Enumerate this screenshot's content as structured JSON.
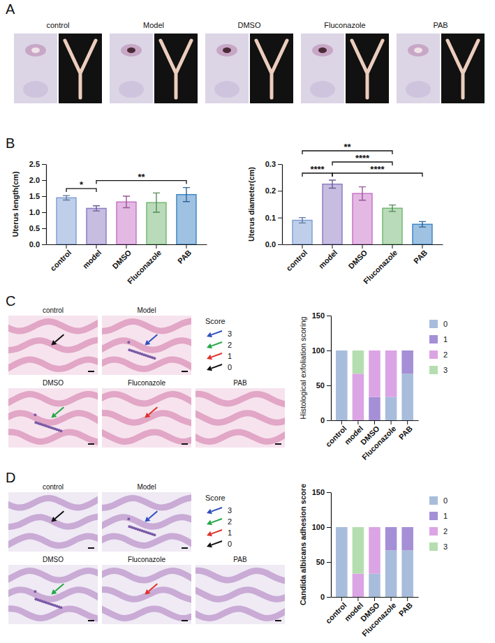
{
  "panels": [
    {
      "letter": "A",
      "labels": [
        "control",
        "Model",
        "DMSO",
        "Fluconazole",
        "PAB"
      ]
    },
    {
      "letter": "B"
    },
    {
      "letter": "C",
      "images": [
        {
          "label": "control",
          "score": "0"
        },
        {
          "label": "Model",
          "score": "3"
        },
        {
          "label": "DMSO",
          "score": "2"
        },
        {
          "label": "Fluconazole",
          "score": "1"
        },
        {
          "label": "PAB"
        }
      ],
      "legend_title": "Score",
      "legend": [
        {
          "label": "3",
          "color": "#2f4fbf"
        },
        {
          "label": "2",
          "color": "#22a845"
        },
        {
          "label": "1",
          "color": "#e0302a"
        },
        {
          "label": "0",
          "color": "#111111"
        }
      ]
    },
    {
      "letter": "D",
      "images": [
        {
          "label": "control",
          "score": "0"
        },
        {
          "label": "Model",
          "score": "3"
        },
        {
          "label": "DMSO",
          "score": "2"
        },
        {
          "label": "Fluconazole",
          "score": "1"
        },
        {
          "label": "PAB"
        }
      ],
      "legend_title": "Score",
      "legend": [
        {
          "label": "3",
          "color": "#2f4fbf"
        },
        {
          "label": "2",
          "color": "#22a845"
        },
        {
          "label": "1",
          "color": "#e0302a"
        },
        {
          "label": "0",
          "color": "#111111"
        }
      ]
    }
  ],
  "chart_data": [
    {
      "type": "bar",
      "y_label": "Uterus length(cm)",
      "categories": [
        "control",
        "model",
        "DMSO",
        "Fluconazole",
        "PAB"
      ],
      "values": [
        1.45,
        1.12,
        1.32,
        1.3,
        1.55
      ],
      "errors": [
        0.07,
        0.08,
        0.18,
        0.3,
        0.22
      ],
      "colors": [
        "#7f9fd6",
        "#8e7cc3",
        "#c774c7",
        "#74b874",
        "#3f86c6"
      ],
      "ylim": [
        0,
        2.5
      ],
      "yticks": [
        {
          "value": 0,
          "label": "0.0"
        },
        0.5,
        {
          "value": 1,
          "label": "1.0"
        },
        1.5,
        {
          "value": 2,
          "label": "2.0"
        },
        2.5
      ],
      "comparisons": [
        {
          "from": "control",
          "to": "model",
          "label": "*"
        },
        {
          "from": "model",
          "to": "PAB",
          "label": "**"
        }
      ]
    },
    {
      "type": "bar",
      "y_label": "Uterus diameter(cm)",
      "categories": [
        "control",
        "model",
        "DMSO",
        "Fluconazole",
        "PAB"
      ],
      "values": [
        0.09,
        0.225,
        0.19,
        0.135,
        0.075
      ],
      "errors": [
        0.01,
        0.015,
        0.025,
        0.012,
        0.01
      ],
      "colors": [
        "#7f9fd6",
        "#8e7cc3",
        "#c774c7",
        "#74b874",
        "#3f86c6"
      ],
      "ylim": [
        0,
        0.3
      ],
      "yticks": [
        {
          "value": 0,
          "label": "0.0"
        },
        0.1,
        0.2,
        0.3
      ],
      "comparisons": [
        {
          "from": "control",
          "to": "model",
          "label": "****"
        },
        {
          "from": "model",
          "to": "PAB",
          "label": "****"
        },
        {
          "from": "model",
          "to": "Fluconazole",
          "label": "****"
        },
        {
          "from": "control",
          "to": "Fluconazole",
          "label": "**"
        }
      ]
    },
    {
      "type": "bar",
      "stacked": true,
      "y_label": "Histological exfoliation scoring",
      "categories": [
        "control",
        "model",
        "DMSO",
        "Fluconazole",
        "PAB"
      ],
      "series": [
        {
          "name": "0",
          "color": "#a7bddb",
          "values": [
            100,
            0,
            0,
            33.3,
            66.7
          ]
        },
        {
          "name": "1",
          "color": "#a58fd6",
          "values": [
            0,
            0,
            33.3,
            0,
            33.3
          ]
        },
        {
          "name": "2",
          "color": "#dba4e4",
          "values": [
            0,
            66.7,
            66.7,
            66.7,
            0
          ]
        },
        {
          "name": "3",
          "color": "#b5deb0",
          "values": [
            0,
            33.3,
            0,
            0,
            0
          ]
        }
      ],
      "ylim": [
        0,
        150
      ],
      "yticks": [
        0,
        50,
        100,
        150
      ],
      "legend": "right"
    },
    {
      "type": "bar",
      "stacked": true,
      "y_label": "Candida albicans adhesion score",
      "categories": [
        "control",
        "model",
        "DMSO",
        "Fluconazole",
        "PAB"
      ],
      "series": [
        {
          "name": "0",
          "color": "#a7bddb",
          "values": [
            100,
            0,
            33.3,
            66.7,
            66.7
          ]
        },
        {
          "name": "1",
          "color": "#a58fd6",
          "values": [
            0,
            0,
            0,
            33.3,
            33.3
          ]
        },
        {
          "name": "2",
          "color": "#dba4e4",
          "values": [
            0,
            33.3,
            66.7,
            0,
            0
          ]
        },
        {
          "name": "3",
          "color": "#b5deb0",
          "values": [
            0,
            66.7,
            0,
            0,
            0
          ]
        }
      ],
      "ylim": [
        0,
        150
      ],
      "yticks": [
        0,
        50,
        100,
        150
      ],
      "legend": "right"
    }
  ]
}
